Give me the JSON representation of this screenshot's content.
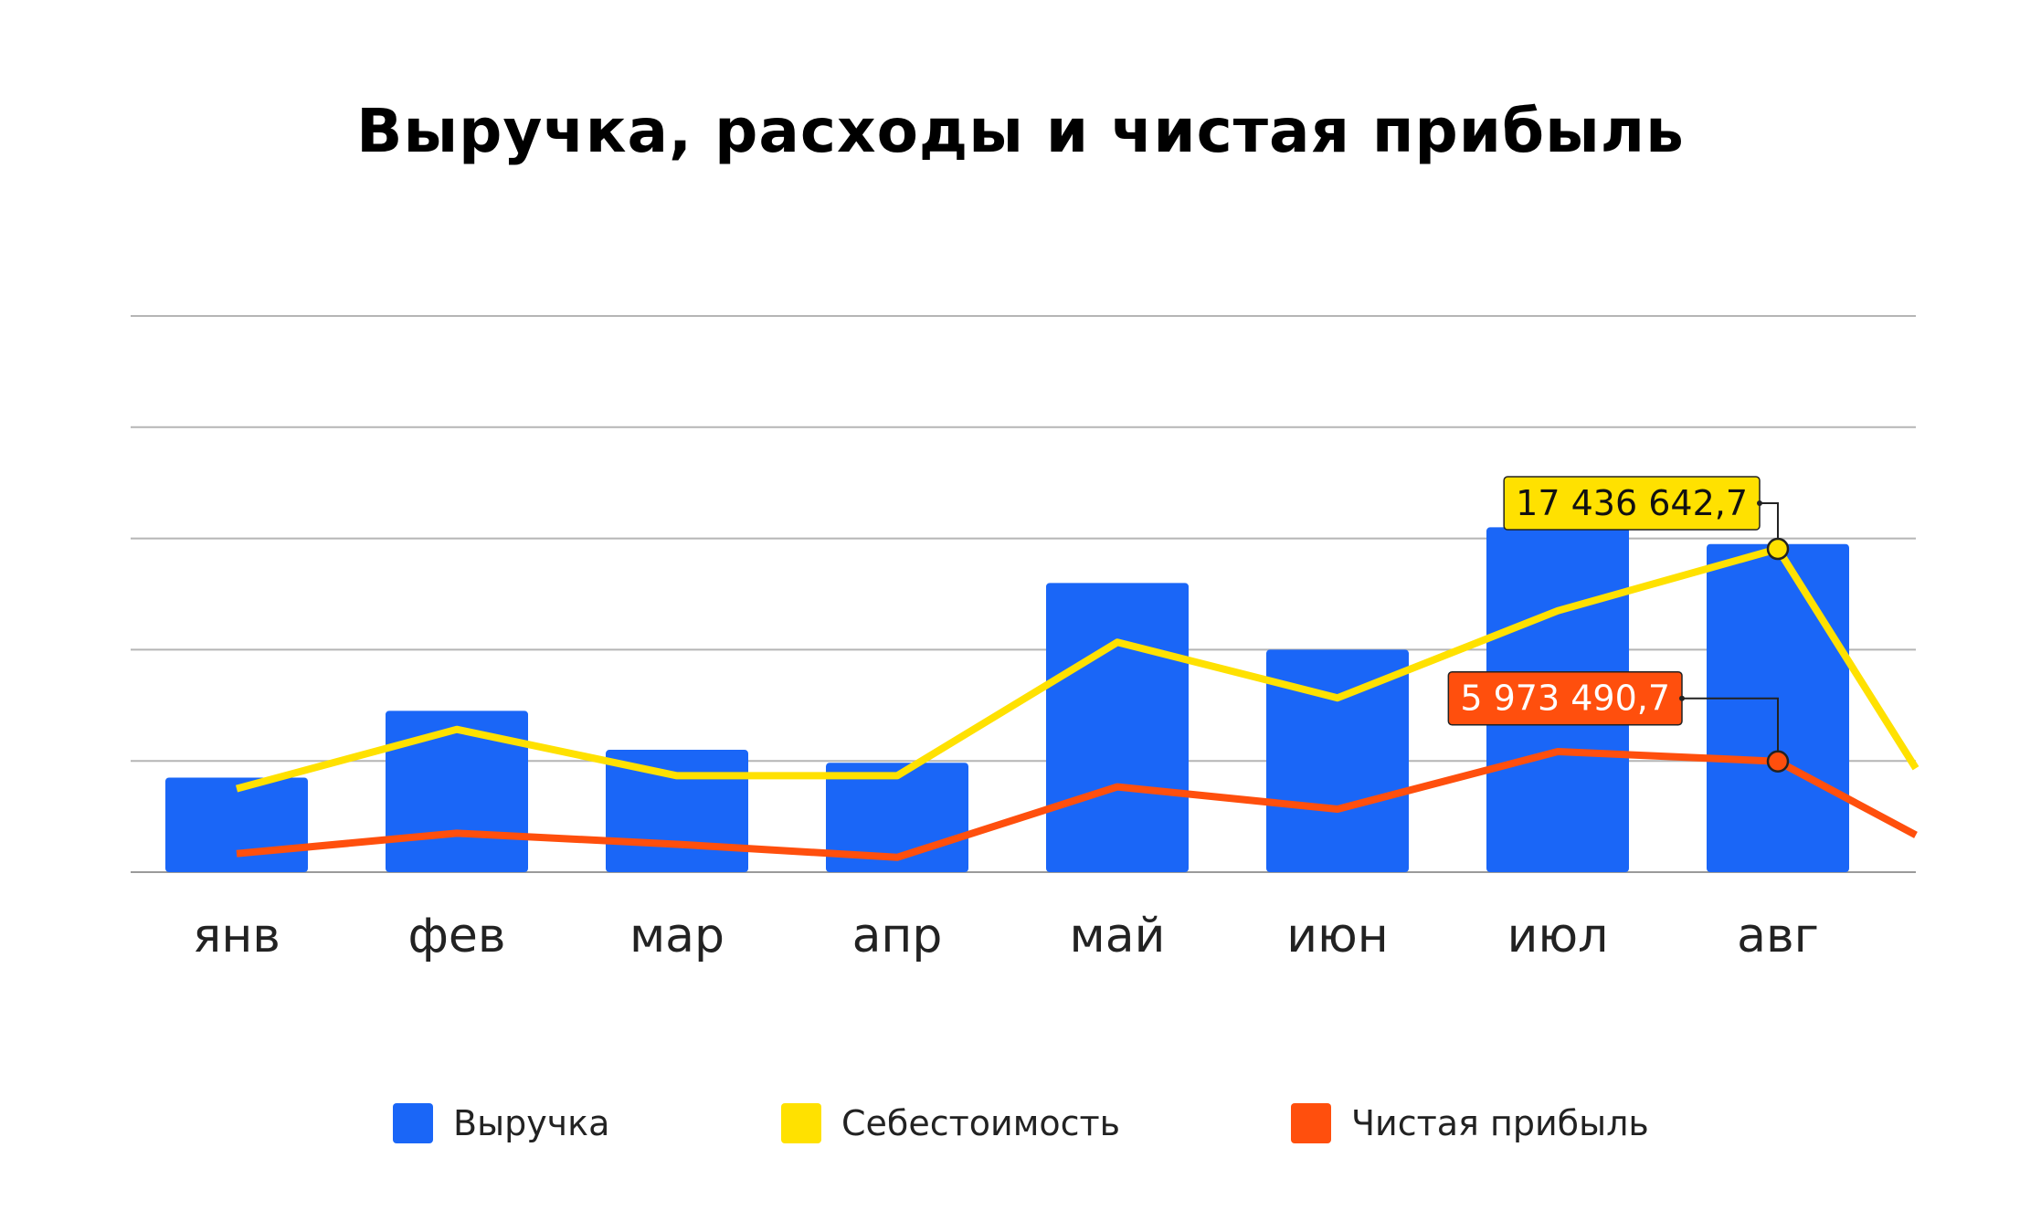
{
  "chart_data": {
    "type": "bar",
    "title": "Выручка, расходы и чистая прибыль",
    "categories": [
      "янв",
      "фев",
      "мар",
      "апр",
      "май",
      "июн",
      "июл",
      "авг"
    ],
    "ylim": [
      0,
      30000000
    ],
    "grid": true,
    "legend_position": "bottom",
    "series": [
      {
        "name": "Выручка",
        "kind": "bar",
        "color": "#1A66F7",
        "values": [
          5100000,
          8700000,
          6600000,
          5900000,
          15600000,
          12000000,
          18600000,
          17700000
        ]
      },
      {
        "name": "Себестоимость",
        "kind": "line",
        "color": "#FFE100",
        "values": [
          4500000,
          7700000,
          5200000,
          5200000,
          12400000,
          9400000,
          14100000,
          17436642.7
        ],
        "extends_right": 5600000,
        "annotations": [
          {
            "index": 7,
            "label": "17 436 642,7"
          }
        ]
      },
      {
        "name": "Чистая прибыль",
        "kind": "line",
        "color": "#FF4F0D",
        "values": [
          1000000,
          2100000,
          1500000,
          800000,
          4600000,
          3400000,
          6500000,
          5973490.7
        ],
        "extends_right": 2000000,
        "annotations": [
          {
            "index": 7,
            "label": "5 973 490,7"
          }
        ]
      }
    ]
  }
}
